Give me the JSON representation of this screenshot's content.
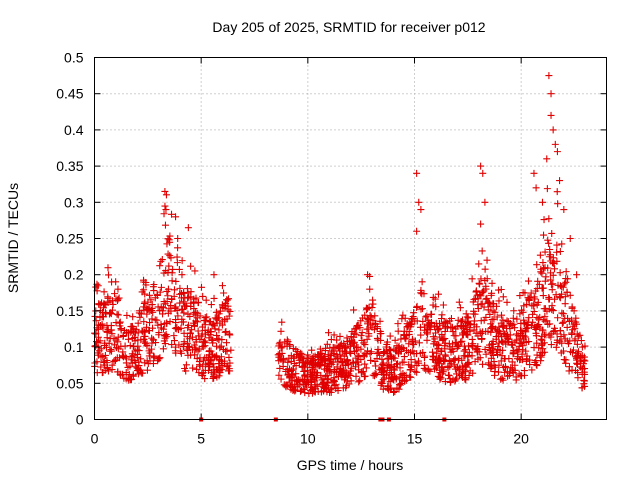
{
  "chart_data": {
    "type": "scatter",
    "title": "Day 205 of 2025, SRMTID for receiver p012",
    "xlabel": "GPS time / hours",
    "ylabel": "SRMTID / TECUs",
    "xlim": [
      0,
      24
    ],
    "ylim": [
      0,
      0.5
    ],
    "xticks": [
      0,
      5,
      10,
      15,
      20
    ],
    "xtick_labels": [
      "0",
      "5",
      "10",
      "15",
      "20"
    ],
    "yticks": [
      0,
      0.05,
      0.1,
      0.15,
      0.2,
      0.25,
      0.3,
      0.35,
      0.4,
      0.45,
      0.5
    ],
    "ytick_labels": [
      "0",
      "0.05",
      "0.1",
      "0.15",
      "0.2",
      "0.25",
      "0.3",
      "0.35",
      "0.4",
      "0.45",
      "0.5"
    ],
    "grid": true,
    "marker": "+",
    "color": "#e00000",
    "series": [
      {
        "name": "SRMTID",
        "segments": [
          {
            "x_range": [
              0.0,
              6.4
            ],
            "profile": [
              [
                0.0,
                0.11
              ],
              [
                0.5,
                0.12
              ],
              [
                1.0,
                0.13
              ],
              [
                1.5,
                0.09
              ],
              [
                2.0,
                0.11
              ],
              [
                2.5,
                0.12
              ],
              [
                3.0,
                0.15
              ],
              [
                3.4,
                0.2
              ],
              [
                3.8,
                0.17
              ],
              [
                4.2,
                0.12
              ],
              [
                4.6,
                0.13
              ],
              [
                5.0,
                0.11
              ],
              [
                5.5,
                0.1
              ],
              [
                6.0,
                0.12
              ],
              [
                6.4,
                0.12
              ]
            ]
          },
          {
            "x_range": [
              8.6,
              23.0
            ],
            "profile": [
              [
                8.6,
                0.09
              ],
              [
                9.0,
                0.08
              ],
              [
                9.5,
                0.07
              ],
              [
                10.0,
                0.06
              ],
              [
                10.5,
                0.065
              ],
              [
                11.0,
                0.07
              ],
              [
                11.5,
                0.075
              ],
              [
                12.0,
                0.085
              ],
              [
                12.5,
                0.1
              ],
              [
                13.0,
                0.12
              ],
              [
                13.5,
                0.08
              ],
              [
                14.0,
                0.065
              ],
              [
                14.5,
                0.09
              ],
              [
                15.0,
                0.11
              ],
              [
                15.3,
                0.13
              ],
              [
                15.8,
                0.11
              ],
              [
                16.3,
                0.1
              ],
              [
                16.8,
                0.09
              ],
              [
                17.3,
                0.1
              ],
              [
                17.8,
                0.12
              ],
              [
                18.3,
                0.15
              ],
              [
                18.8,
                0.11
              ],
              [
                19.3,
                0.1
              ],
              [
                19.8,
                0.1
              ],
              [
                20.3,
                0.12
              ],
              [
                20.8,
                0.14
              ],
              [
                21.3,
                0.2
              ],
              [
                21.7,
                0.18
              ],
              [
                22.2,
                0.13
              ],
              [
                22.6,
                0.1
              ],
              [
                23.0,
                0.06
              ]
            ]
          }
        ],
        "spikes": [
          {
            "x": 0.2,
            "y": 0.16
          },
          {
            "x": 0.8,
            "y": 0.19
          },
          {
            "x": 1.1,
            "y": 0.18
          },
          {
            "x": 3.3,
            "y": 0.315
          },
          {
            "x": 3.35,
            "y": 0.29
          },
          {
            "x": 3.8,
            "y": 0.28
          },
          {
            "x": 3.9,
            "y": 0.25
          },
          {
            "x": 4.4,
            "y": 0.265
          },
          {
            "x": 4.1,
            "y": 0.2
          },
          {
            "x": 5.6,
            "y": 0.2
          },
          {
            "x": 12.8,
            "y": 0.2
          },
          {
            "x": 12.9,
            "y": 0.18
          },
          {
            "x": 15.1,
            "y": 0.34
          },
          {
            "x": 15.2,
            "y": 0.3
          },
          {
            "x": 15.3,
            "y": 0.29
          },
          {
            "x": 15.1,
            "y": 0.26
          },
          {
            "x": 18.1,
            "y": 0.35
          },
          {
            "x": 18.2,
            "y": 0.34
          },
          {
            "x": 18.3,
            "y": 0.3
          },
          {
            "x": 18.1,
            "y": 0.27
          },
          {
            "x": 18.4,
            "y": 0.22
          },
          {
            "x": 20.6,
            "y": 0.34
          },
          {
            "x": 20.7,
            "y": 0.32
          },
          {
            "x": 21.0,
            "y": 0.3
          },
          {
            "x": 21.3,
            "y": 0.475
          },
          {
            "x": 21.4,
            "y": 0.45
          },
          {
            "x": 21.4,
            "y": 0.42
          },
          {
            "x": 21.5,
            "y": 0.4
          },
          {
            "x": 21.6,
            "y": 0.38
          },
          {
            "x": 21.7,
            "y": 0.37
          },
          {
            "x": 21.2,
            "y": 0.36
          },
          {
            "x": 21.8,
            "y": 0.33
          },
          {
            "x": 22.0,
            "y": 0.29
          },
          {
            "x": 22.3,
            "y": 0.25
          },
          {
            "x": 22.6,
            "y": 0.2
          }
        ],
        "zero_points": [
          5.0,
          8.5,
          13.4,
          13.5,
          13.8,
          16.4
        ]
      }
    ]
  }
}
